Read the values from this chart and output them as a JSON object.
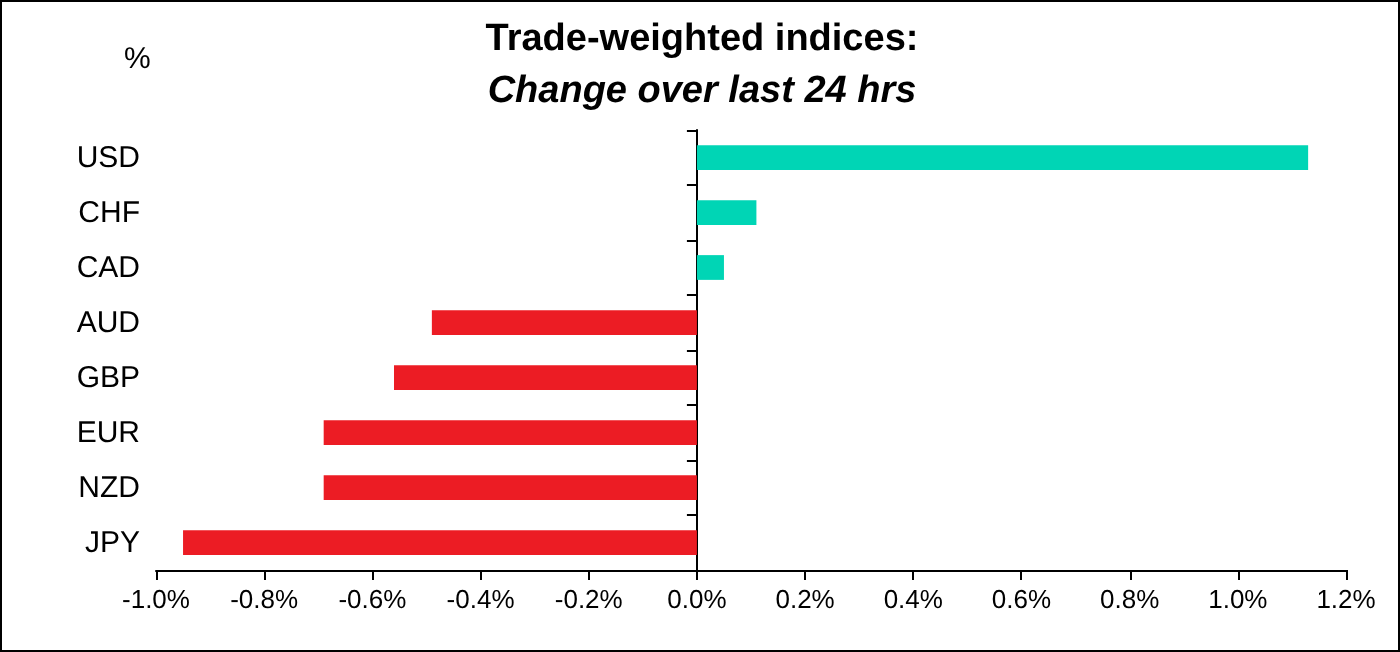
{
  "chart_data": {
    "type": "bar",
    "orientation": "horizontal",
    "title": "Trade-weighted indices:",
    "subtitle": "Change over last 24 hrs",
    "ylabel": "%",
    "categories": [
      "USD",
      "CHF",
      "CAD",
      "AUD",
      "GBP",
      "EUR",
      "NZD",
      "JPY"
    ],
    "values": [
      1.13,
      0.11,
      0.05,
      -0.49,
      -0.56,
      -0.69,
      -0.69,
      -0.95
    ],
    "colors": [
      "#00d5b5",
      "#00d5b5",
      "#00d5b5",
      "#ec1c24",
      "#ec1c24",
      "#ec1c24",
      "#ec1c24",
      "#ec1c24"
    ],
    "xlim": [
      -1.0,
      1.2
    ],
    "xticks": [
      {
        "value": -1.0,
        "label": "-1.0%"
      },
      {
        "value": -0.8,
        "label": "-0.8%"
      },
      {
        "value": -0.6,
        "label": "-0.6%"
      },
      {
        "value": -0.4,
        "label": "-0.4%"
      },
      {
        "value": -0.2,
        "label": "-0.2%"
      },
      {
        "value": 0,
        "label": "0.0%"
      },
      {
        "value": 0.2,
        "label": "0.2%"
      },
      {
        "value": 0.4,
        "label": "0.4%"
      },
      {
        "value": 0.6,
        "label": "0.6%"
      },
      {
        "value": 0.8,
        "label": "0.8%"
      },
      {
        "value": 1.0,
        "label": "1.0%"
      },
      {
        "value": 1.2,
        "label": "1.2%"
      }
    ],
    "data_labels": false
  }
}
